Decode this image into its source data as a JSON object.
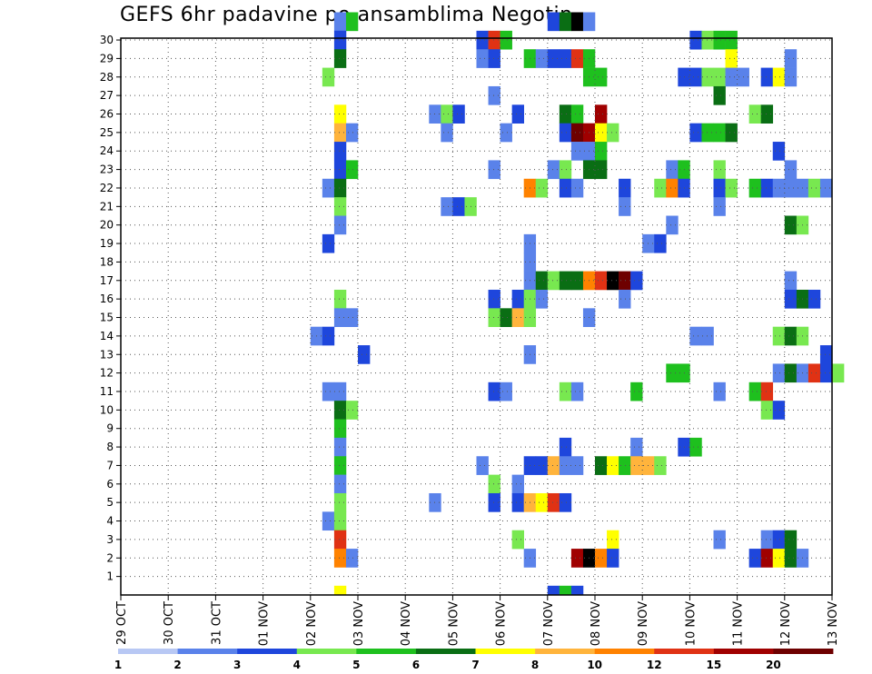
{
  "chart_data": {
    "type": "heatmap",
    "title": "GEFS 6hr padavine po ansamblima Negotin",
    "xlabel": "",
    "ylabel": "",
    "x_tick_labels": [
      "29 OCT",
      "30 OCT",
      "31 OCT",
      "01 NOV",
      "02 NOV",
      "03 NOV",
      "04 NOV",
      "05 NOV",
      "06 NOV",
      "07 NOV",
      "08 NOV",
      "09 NOV",
      "10 NOV",
      "11 NOV",
      "12 NOV",
      "13 NOV"
    ],
    "y_tick_labels": [
      "1",
      "2",
      "3",
      "4",
      "5",
      "6",
      "7",
      "8",
      "9",
      "10",
      "11",
      "12",
      "13",
      "14",
      "15",
      "16",
      "17",
      "18",
      "19",
      "20",
      "21",
      "22",
      "23",
      "24",
      "25",
      "26",
      "27",
      "28",
      "29",
      "30"
    ],
    "x_range_days": [
      0,
      15
    ],
    "y_range": [
      0,
      30
    ],
    "grid": true,
    "colorbar": {
      "labels": [
        "1",
        "2",
        "3",
        "4",
        "5",
        "6",
        "7",
        "8",
        "10",
        "12",
        "15",
        "20"
      ],
      "colors": [
        "#b8c8f4",
        "#5a82ea",
        "#1e46dc",
        "#78e850",
        "#1ec01e",
        "#0a6e14",
        "#ffff00",
        "#ffb43c",
        "#ff8200",
        "#e03214",
        "#a00000",
        "#6e0000"
      ]
    },
    "cells": [
      [
        4.5,
        30,
        1
      ],
      [
        4.75,
        30,
        4
      ],
      [
        9.0,
        30,
        2
      ],
      [
        9.25,
        30,
        5
      ],
      [
        9.5,
        30,
        12
      ],
      [
        9.75,
        30,
        1
      ],
      [
        4.5,
        29,
        2
      ],
      [
        7.5,
        29,
        2
      ],
      [
        7.75,
        29,
        9
      ],
      [
        8.0,
        29,
        4
      ],
      [
        12.0,
        29,
        2
      ],
      [
        12.25,
        29,
        3
      ],
      [
        12.5,
        29,
        4
      ],
      [
        12.75,
        29,
        4
      ],
      [
        4.5,
        28,
        5
      ],
      [
        7.5,
        28,
        1
      ],
      [
        7.75,
        28,
        2
      ],
      [
        8.5,
        28,
        4
      ],
      [
        8.75,
        28,
        1
      ],
      [
        9.0,
        28,
        2
      ],
      [
        9.25,
        28,
        2
      ],
      [
        9.5,
        28,
        9
      ],
      [
        9.75,
        28,
        4
      ],
      [
        12.75,
        28,
        6
      ],
      [
        14.0,
        28,
        1
      ],
      [
        4.25,
        27,
        3
      ],
      [
        9.75,
        27,
        4
      ],
      [
        10.0,
        27,
        4
      ],
      [
        11.75,
        27,
        2
      ],
      [
        12.0,
        27,
        2
      ],
      [
        12.25,
        27,
        3
      ],
      [
        12.5,
        27,
        3
      ],
      [
        12.75,
        27,
        1
      ],
      [
        13.0,
        27,
        1
      ],
      [
        13.5,
        27,
        2
      ],
      [
        13.75,
        27,
        6
      ],
      [
        14.0,
        27,
        1
      ],
      [
        7.75,
        26,
        1
      ],
      [
        12.5,
        26,
        5
      ],
      [
        4.5,
        25,
        6
      ],
      [
        6.5,
        25,
        1
      ],
      [
        6.75,
        25,
        3
      ],
      [
        7.0,
        25,
        2
      ],
      [
        8.25,
        25,
        2
      ],
      [
        9.25,
        25,
        5
      ],
      [
        9.5,
        25,
        4
      ],
      [
        10.0,
        25,
        10
      ],
      [
        13.25,
        25,
        3
      ],
      [
        13.5,
        25,
        5
      ],
      [
        4.5,
        24,
        7
      ],
      [
        4.75,
        24,
        1
      ],
      [
        6.75,
        24,
        1
      ],
      [
        8.0,
        24,
        1
      ],
      [
        9.25,
        24,
        2
      ],
      [
        9.5,
        24,
        11
      ],
      [
        9.75,
        24,
        10
      ],
      [
        10.0,
        24,
        6
      ],
      [
        10.25,
        24,
        3
      ],
      [
        12.0,
        24,
        2
      ],
      [
        12.25,
        24,
        4
      ],
      [
        12.5,
        24,
        4
      ],
      [
        12.75,
        24,
        5
      ],
      [
        4.5,
        23,
        2
      ],
      [
        9.5,
        23,
        1
      ],
      [
        9.75,
        23,
        1
      ],
      [
        10.0,
        23,
        4
      ],
      [
        13.75,
        23,
        2
      ],
      [
        4.5,
        22,
        2
      ],
      [
        4.75,
        22,
        4
      ],
      [
        7.75,
        22,
        1
      ],
      [
        9.0,
        22,
        1
      ],
      [
        9.25,
        22,
        3
      ],
      [
        9.75,
        22,
        5
      ],
      [
        10.0,
        22,
        5
      ],
      [
        11.5,
        22,
        1
      ],
      [
        11.75,
        22,
        4
      ],
      [
        12.5,
        22,
        3
      ],
      [
        14.0,
        22,
        1
      ],
      [
        4.25,
        21,
        1
      ],
      [
        4.5,
        21,
        5
      ],
      [
        8.5,
        21,
        8
      ],
      [
        8.75,
        21,
        3
      ],
      [
        9.25,
        21,
        2
      ],
      [
        9.5,
        21,
        1
      ],
      [
        10.5,
        21,
        2
      ],
      [
        11.25,
        21,
        3
      ],
      [
        11.5,
        21,
        8
      ],
      [
        11.75,
        21,
        2
      ],
      [
        12.5,
        21,
        2
      ],
      [
        12.75,
        21,
        3
      ],
      [
        13.25,
        21,
        4
      ],
      [
        13.5,
        21,
        2
      ],
      [
        13.75,
        21,
        1
      ],
      [
        14.0,
        21,
        1
      ],
      [
        14.25,
        21,
        1
      ],
      [
        14.5,
        21,
        3
      ],
      [
        14.75,
        21,
        1
      ],
      [
        4.5,
        20,
        3
      ],
      [
        6.75,
        20,
        1
      ],
      [
        7.0,
        20,
        2
      ],
      [
        7.25,
        20,
        3
      ],
      [
        10.5,
        20,
        1
      ],
      [
        12.5,
        20,
        1
      ],
      [
        4.5,
        19,
        1
      ],
      [
        14.0,
        19,
        5
      ],
      [
        14.25,
        19,
        3
      ],
      [
        11.5,
        19,
        1
      ],
      [
        4.25,
        18,
        2
      ],
      [
        8.5,
        18,
        1
      ],
      [
        11.0,
        18,
        1
      ],
      [
        11.25,
        18,
        2
      ],
      [
        8.5,
        17,
        1
      ],
      [
        8.5,
        16,
        1
      ],
      [
        8.75,
        16,
        5
      ],
      [
        9.0,
        16,
        3
      ],
      [
        9.25,
        16,
        5
      ],
      [
        9.5,
        16,
        5
      ],
      [
        9.75,
        16,
        8
      ],
      [
        10.0,
        16,
        9
      ],
      [
        10.25,
        16,
        12
      ],
      [
        10.5,
        16,
        11
      ],
      [
        10.75,
        16,
        2
      ],
      [
        14.0,
        16,
        1
      ],
      [
        4.5,
        15,
        3
      ],
      [
        7.75,
        15,
        2
      ],
      [
        8.25,
        15,
        2
      ],
      [
        8.5,
        15,
        3
      ],
      [
        8.75,
        15,
        1
      ],
      [
        10.5,
        15,
        1
      ],
      [
        14.0,
        15,
        2
      ],
      [
        14.25,
        15,
        5
      ],
      [
        14.5,
        15,
        2
      ],
      [
        4.5,
        14,
        1
      ],
      [
        4.75,
        14,
        1
      ],
      [
        7.75,
        14,
        3
      ],
      [
        8.0,
        14,
        5
      ],
      [
        8.25,
        14,
        7
      ],
      [
        8.5,
        14,
        3
      ],
      [
        9.75,
        14,
        1
      ],
      [
        4.0,
        13,
        1
      ],
      [
        4.25,
        13,
        2
      ],
      [
        12.0,
        13,
        1
      ],
      [
        12.25,
        13,
        1
      ],
      [
        13.75,
        13,
        3
      ],
      [
        14.0,
        13,
        5
      ],
      [
        14.25,
        13,
        3
      ],
      [
        5.0,
        12,
        2
      ],
      [
        8.5,
        12,
        1
      ],
      [
        14.75,
        12,
        2
      ],
      [
        11.5,
        11,
        4
      ],
      [
        11.75,
        11,
        4
      ],
      [
        13.75,
        11,
        1
      ],
      [
        14.0,
        11,
        5
      ],
      [
        14.25,
        11,
        1
      ],
      [
        14.5,
        11,
        9
      ],
      [
        14.75,
        11,
        2
      ],
      [
        15.0,
        11,
        3
      ],
      [
        4.25,
        10,
        1
      ],
      [
        4.5,
        10,
        1
      ],
      [
        7.75,
        10,
        2
      ],
      [
        8.0,
        10,
        1
      ],
      [
        9.25,
        10,
        3
      ],
      [
        9.5,
        10,
        1
      ],
      [
        10.75,
        10,
        4
      ],
      [
        12.5,
        10,
        1
      ],
      [
        13.25,
        10,
        4
      ],
      [
        13.5,
        10,
        9
      ],
      [
        4.5,
        9,
        5
      ],
      [
        4.75,
        9,
        3
      ],
      [
        13.5,
        9,
        3
      ],
      [
        13.75,
        9,
        2
      ],
      [
        4.5,
        8,
        4
      ],
      [
        4.5,
        7,
        1
      ],
      [
        9.25,
        7,
        2
      ],
      [
        10.75,
        7,
        1
      ],
      [
        11.75,
        7,
        2
      ],
      [
        12.0,
        7,
        4
      ],
      [
        4.5,
        6,
        4
      ],
      [
        7.5,
        6,
        1
      ],
      [
        8.5,
        6,
        2
      ],
      [
        8.75,
        6,
        2
      ],
      [
        9.0,
        6,
        7
      ],
      [
        9.25,
        6,
        1
      ],
      [
        9.5,
        6,
        1
      ],
      [
        10.0,
        6,
        5
      ],
      [
        10.25,
        6,
        6
      ],
      [
        10.5,
        6,
        4
      ],
      [
        10.75,
        6,
        7
      ],
      [
        11.0,
        6,
        7
      ],
      [
        11.25,
        6,
        3
      ],
      [
        4.5,
        5,
        1
      ],
      [
        7.75,
        5,
        3
      ],
      [
        8.25,
        5,
        1
      ],
      [
        4.5,
        4,
        3
      ],
      [
        6.5,
        4,
        1
      ],
      [
        7.75,
        4,
        2
      ],
      [
        8.25,
        4,
        2
      ],
      [
        8.5,
        4,
        7
      ],
      [
        8.75,
        4,
        6
      ],
      [
        9.0,
        4,
        9
      ],
      [
        9.25,
        4,
        2
      ],
      [
        4.25,
        3,
        1
      ],
      [
        4.5,
        3,
        3
      ],
      [
        4.5,
        2,
        9
      ],
      [
        8.25,
        2,
        3
      ],
      [
        10.25,
        2,
        6
      ],
      [
        12.5,
        2,
        1
      ],
      [
        13.5,
        2,
        1
      ],
      [
        13.75,
        2,
        2
      ],
      [
        14.0,
        2,
        5
      ],
      [
        4.5,
        1,
        8
      ],
      [
        4.75,
        1,
        1
      ],
      [
        8.5,
        1,
        1
      ],
      [
        9.5,
        1,
        10
      ],
      [
        9.75,
        1,
        12
      ],
      [
        10.0,
        1,
        8
      ],
      [
        10.25,
        1,
        2
      ],
      [
        13.25,
        1,
        2
      ],
      [
        13.5,
        1,
        10
      ],
      [
        13.75,
        1,
        6
      ],
      [
        14.0,
        1,
        5
      ],
      [
        14.25,
        1,
        1
      ],
      [
        4.5,
        0,
        6
      ],
      [
        9.0,
        0,
        2
      ],
      [
        9.25,
        0,
        4
      ],
      [
        9.5,
        0,
        2
      ]
    ]
  }
}
